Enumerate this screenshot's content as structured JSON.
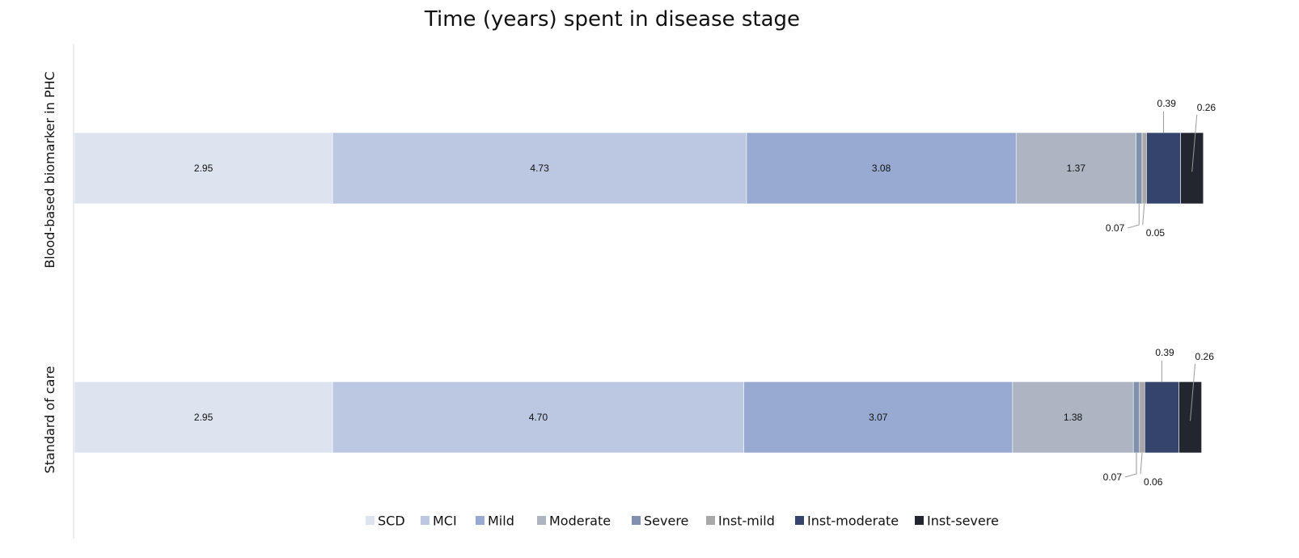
{
  "chart_data": {
    "type": "bar",
    "orientation": "horizontal",
    "stacked": true,
    "title": "Time (years) spent in disease stage",
    "categories": [
      "Blood-based biomarker in PHC",
      "Standard of care"
    ],
    "series": [
      {
        "name": "SCD",
        "color": "#dde3ef",
        "values": [
          2.95,
          2.95
        ]
      },
      {
        "name": "MCI",
        "color": "#bcc8e1",
        "values": [
          4.73,
          4.7
        ]
      },
      {
        "name": "Mild",
        "color": "#98a9d2",
        "values": [
          3.08,
          3.07
        ]
      },
      {
        "name": "Moderate",
        "color": "#adb4c2",
        "values": [
          1.37,
          1.38
        ]
      },
      {
        "name": "Severe",
        "color": "#8090ad",
        "values": [
          0.07,
          0.07
        ]
      },
      {
        "name": "Inst-mild",
        "color": "#a8a8a8",
        "values": [
          0.05,
          0.06
        ]
      },
      {
        "name": "Inst-moderate",
        "color": "#34446c",
        "values": [
          0.39,
          0.39
        ]
      },
      {
        "name": "Inst-severe",
        "color": "#23262e",
        "values": [
          0.26,
          0.26
        ]
      }
    ],
    "data_labels": [
      [
        "2.95",
        "4.73",
        "3.08",
        "1.37",
        "0.07",
        "0.05",
        "0.39",
        "0.26"
      ],
      [
        "2.95",
        "4.70",
        "3.07",
        "1.38",
        "0.07",
        "0.06",
        "0.39",
        "0.26"
      ]
    ],
    "legend_position": "bottom",
    "grid": false
  }
}
